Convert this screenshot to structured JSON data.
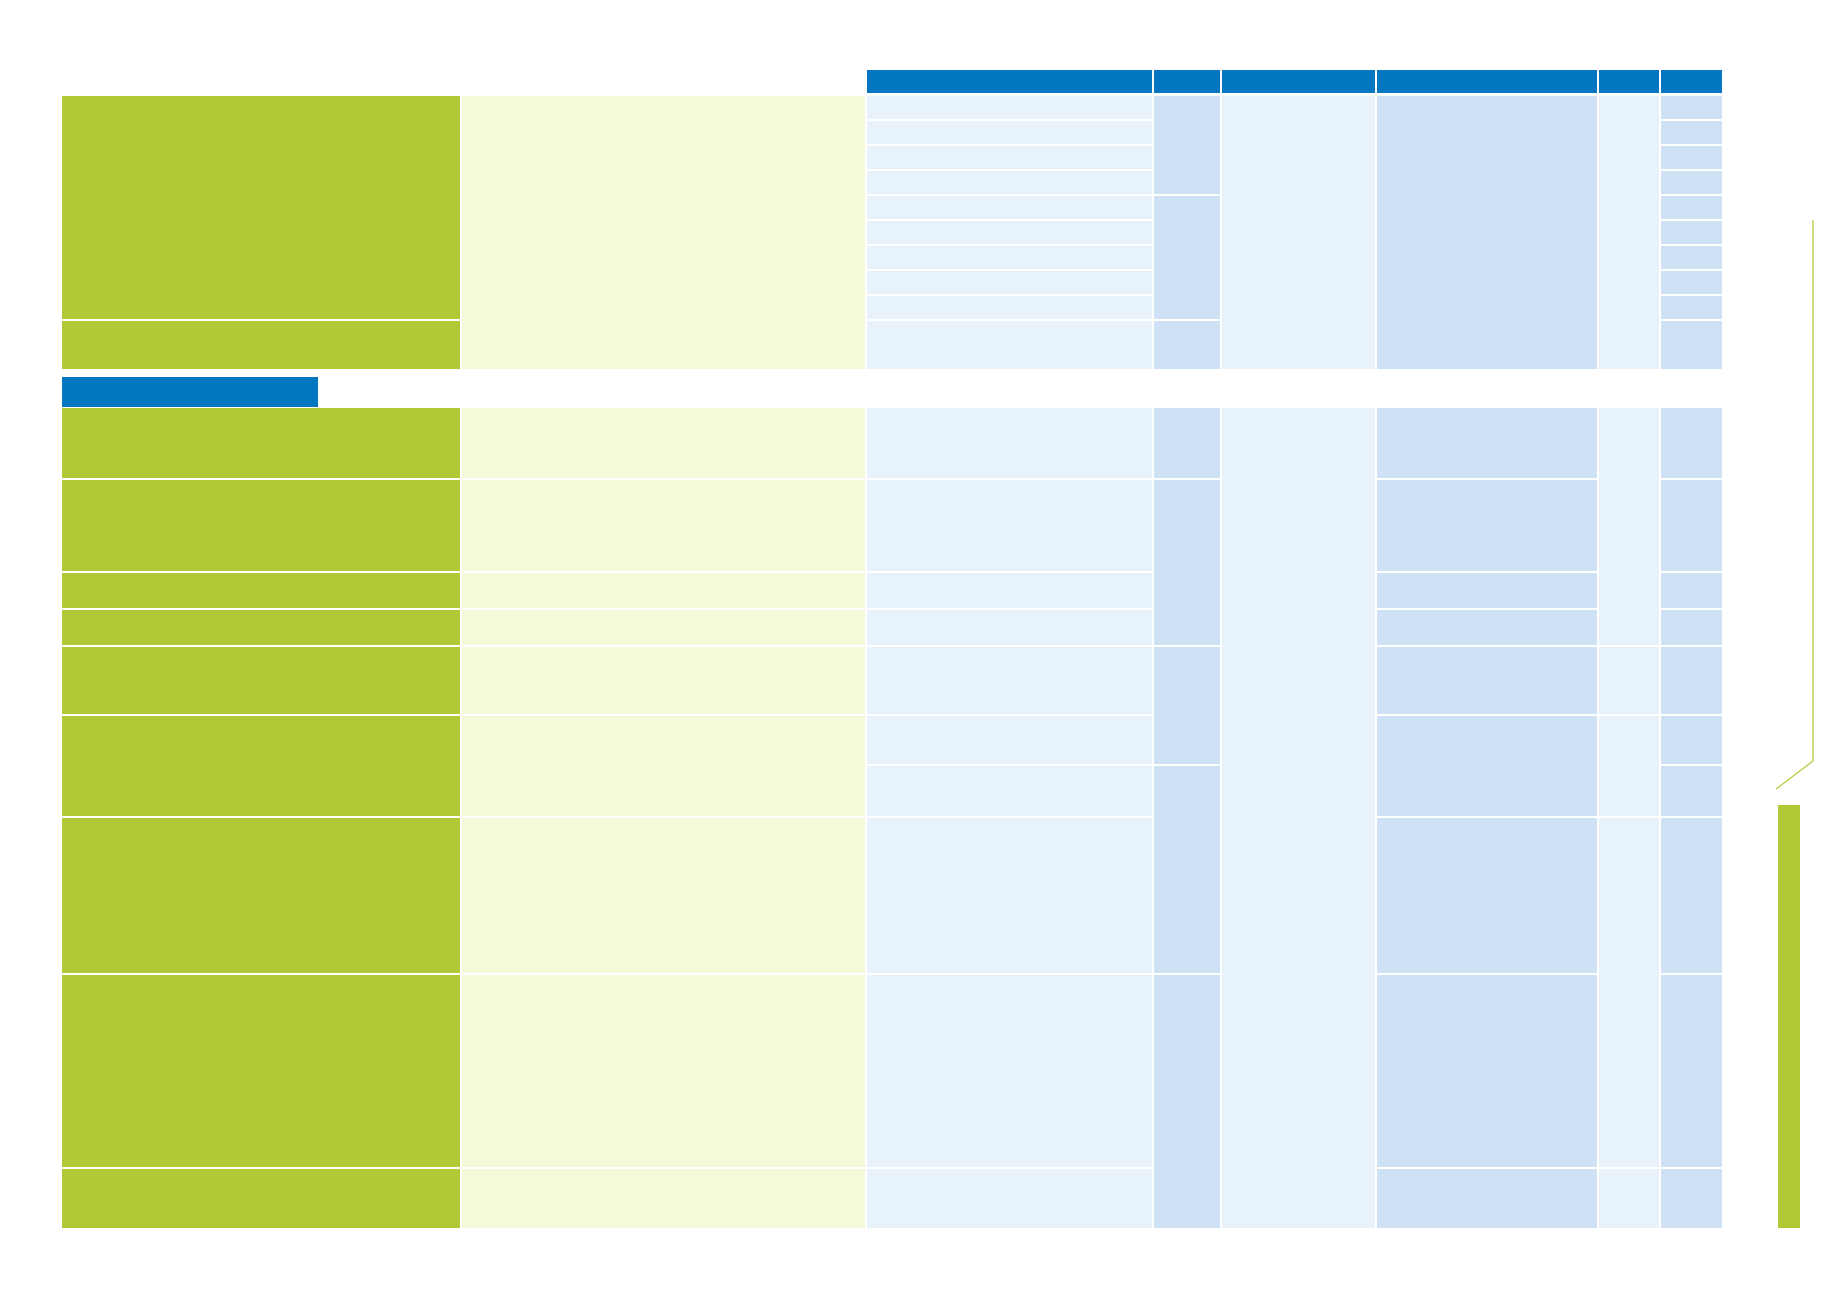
{
  "colors": {
    "header": "#0277c0",
    "section_tab": "#0277c0",
    "row_label": "#b0c934",
    "row_description": "#f3f9d9",
    "light_blue": "#e8f2fb",
    "mid_blue": "#cfe1f4",
    "side_bar": "#b0c934"
  },
  "table": {
    "header_cells": [
      "",
      "",
      "",
      "",
      "",
      ""
    ],
    "section_tab_label": ""
  }
}
